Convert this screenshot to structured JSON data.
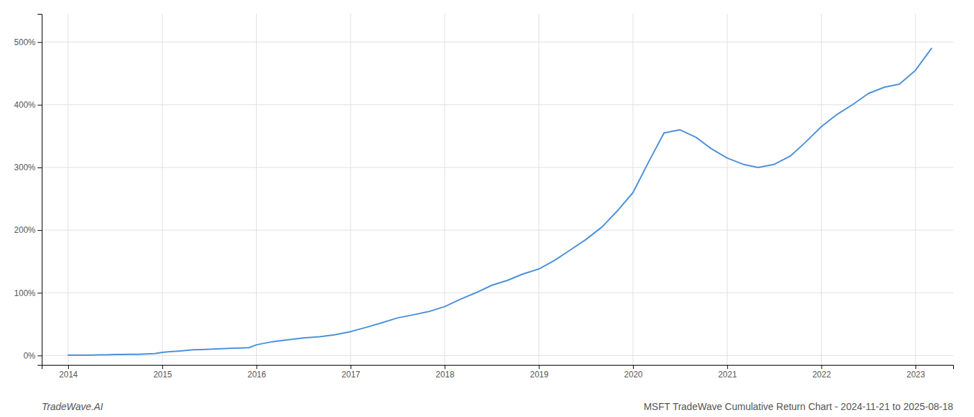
{
  "chart_data": {
    "type": "line",
    "title": "MSFT TradeWave Cumulative Return Chart - 2024-11-21 to 2025-08-18",
    "annotations": [
      "TradeWave.AI"
    ],
    "color": "#4a90d9",
    "grid": true,
    "x": [
      2014.0,
      2014.08,
      2014.17,
      2014.25,
      2014.33,
      2014.42,
      2014.5,
      2014.58,
      2014.67,
      2014.75,
      2014.83,
      2014.92,
      2015.0,
      2015.08,
      2015.17,
      2015.25,
      2015.33,
      2015.42,
      2015.5,
      2015.58,
      2015.67,
      2015.75,
      2015.83,
      2015.92,
      2016.0,
      2016.17,
      2016.33,
      2016.5,
      2016.67,
      2016.83,
      2017.0,
      2017.17,
      2017.33,
      2017.5,
      2017.67,
      2017.83,
      2018.0,
      2018.17,
      2018.33,
      2018.5,
      2018.67,
      2018.83,
      2019.0,
      2019.17,
      2019.33,
      2019.5,
      2019.67,
      2019.83,
      2020.0,
      2020.17,
      2020.33,
      2020.5,
      2020.67,
      2020.83,
      2021.0,
      2021.17,
      2021.33,
      2021.5,
      2021.67,
      2021.83,
      2022.0,
      2022.17,
      2022.33,
      2022.5,
      2022.67,
      2022.83,
      2023.0,
      2023.17
    ],
    "values": [
      0.5,
      0.5,
      0.5,
      0.5,
      1.0,
      1.0,
      1.5,
      1.5,
      2.0,
      2.0,
      2.5,
      3.0,
      5.0,
      6.0,
      7.0,
      8.0,
      9.0,
      9.5,
      10.0,
      10.5,
      11.0,
      11.5,
      12.0,
      12.5,
      17.0,
      22.0,
      25.0,
      28.0,
      30.0,
      33.0,
      38.0,
      45.0,
      52.0,
      60.0,
      65.0,
      70.0,
      78.0,
      90.0,
      100.0,
      112.0,
      120.0,
      130.0,
      138.0,
      152.0,
      168.0,
      185.0,
      205.0,
      230.0,
      260.0,
      310.0,
      355.0,
      360.0,
      348.0,
      330.0,
      315.0,
      305.0,
      300.0,
      305.0,
      318.0,
      340.0,
      365.0,
      385.0,
      400.0,
      418.0,
      428.0,
      433.0,
      455.0,
      490.0
    ],
    "xlim": [
      2013.72,
      2023.4
    ],
    "ylim": [
      -15,
      545
    ],
    "xticks": [
      2014,
      2015,
      2016,
      2017,
      2018,
      2019,
      2020,
      2021,
      2022,
      2023
    ],
    "yticks": [
      {
        "value": 0,
        "label": "0%"
      },
      {
        "value": 100,
        "label": "100%"
      },
      {
        "value": 200,
        "label": "200%"
      },
      {
        "value": 300,
        "label": "300%"
      },
      {
        "value": 400,
        "label": "400%"
      },
      {
        "value": 500,
        "label": "500%"
      }
    ]
  }
}
